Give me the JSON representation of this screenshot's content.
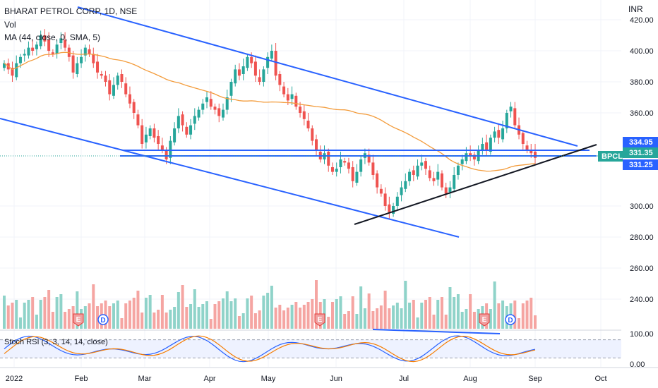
{
  "chart_data": {
    "type": "candlestick",
    "title": "BHARAT PETROL CORP, 1D, NSE",
    "currency": "INR",
    "ticker": "BPCL",
    "indicators": {
      "volume": "Vol",
      "ma": "MA (44, close, 0, SMA, 5)",
      "stoch_rsi": "Stoch RSI (3, 3, 14, 14, close)"
    },
    "price_axis": {
      "ticks": [
        420,
        400,
        380,
        360,
        300,
        280,
        260,
        240
      ],
      "tick_labels": [
        "420.00",
        "400.00",
        "380.00",
        "360.00",
        "300.00",
        "280.00",
        "260.00",
        "240.00"
      ],
      "range": [
        230,
        425
      ]
    },
    "rsi_axis": {
      "ticks": [
        100,
        0
      ],
      "tick_labels": [
        "100.00",
        "0.00"
      ],
      "bands": [
        80,
        20
      ]
    },
    "time_axis": [
      "2022",
      "Feb",
      "Mar",
      "Apr",
      "May",
      "Jun",
      "Jul",
      "Aug",
      "Sep",
      "Oct"
    ],
    "price_labels": [
      {
        "text": "334.95",
        "color": "#2962ff"
      },
      {
        "text": "331.35",
        "color": "#26a69a"
      },
      {
        "text": "331.25",
        "color": "#2962ff"
      }
    ],
    "ticker_label": "BPCL",
    "closes": [
      392,
      388,
      384,
      392,
      396,
      398,
      402,
      400,
      404,
      410,
      406,
      400,
      398,
      404,
      408,
      402,
      396,
      386,
      392,
      396,
      402,
      398,
      392,
      386,
      384,
      380,
      372,
      378,
      384,
      380,
      372,
      366,
      360,
      352,
      340,
      346,
      350,
      344,
      340,
      336,
      330,
      342,
      350,
      358,
      352,
      346,
      352,
      358,
      362,
      366,
      370,
      364,
      362,
      358,
      362,
      370,
      380,
      388,
      384,
      390,
      396,
      392,
      384,
      380,
      388,
      396,
      400,
      384,
      378,
      372,
      368,
      372,
      364,
      360,
      356,
      350,
      342,
      336,
      330,
      334,
      326,
      322,
      324,
      330,
      328,
      324,
      316,
      322,
      330,
      334,
      328,
      320,
      312,
      308,
      300,
      296,
      300,
      306,
      312,
      316,
      322,
      320,
      326,
      328,
      324,
      318,
      316,
      322,
      312,
      308,
      312,
      320,
      326,
      330,
      334,
      332,
      330,
      336,
      340,
      336,
      344,
      348,
      344,
      350,
      360,
      364,
      352,
      346,
      340,
      336,
      334,
      331
    ]
  }
}
